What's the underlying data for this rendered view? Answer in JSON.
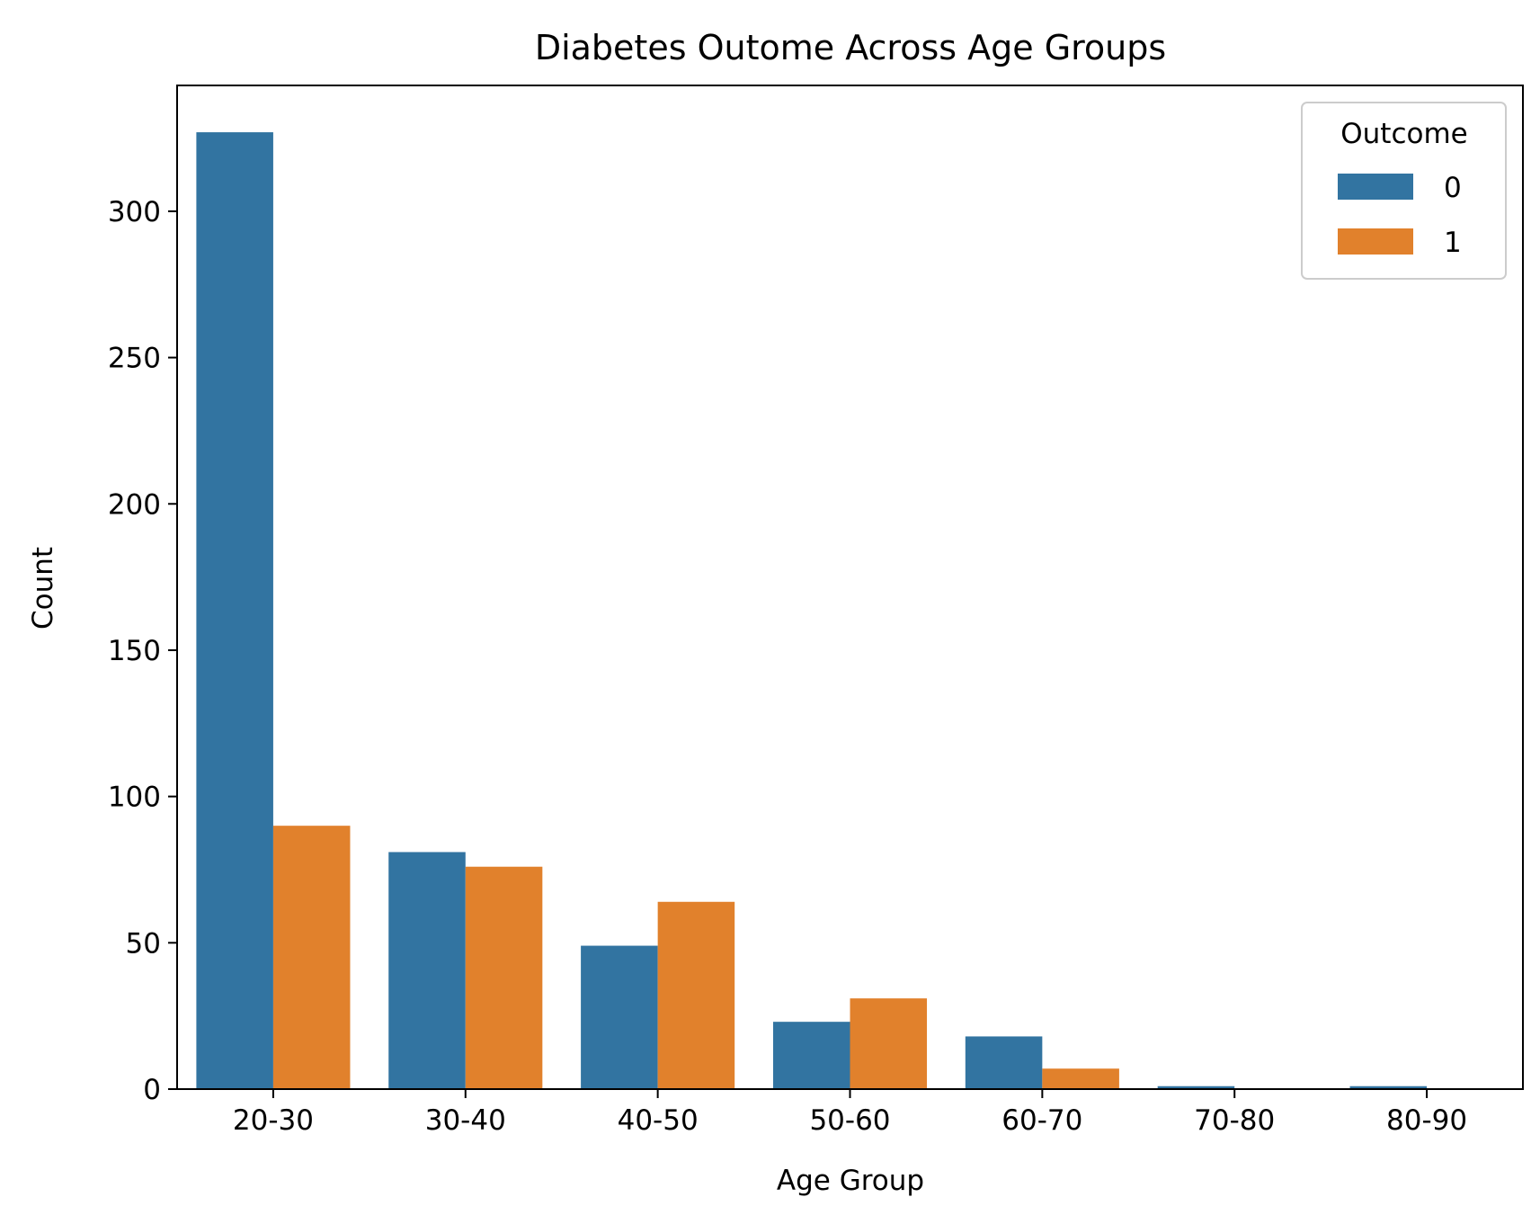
{
  "chart_data": {
    "type": "bar",
    "title": "Diabetes Outome Across Age Groups",
    "xlabel": "Age Group",
    "ylabel": "Count",
    "categories": [
      "20-30",
      "30-40",
      "40-50",
      "50-60",
      "60-70",
      "70-80",
      "80-90"
    ],
    "series": [
      {
        "name": "0",
        "color": "#3274a1",
        "values": [
          327,
          81,
          49,
          23,
          18,
          1,
          1
        ]
      },
      {
        "name": "1",
        "color": "#e1812c",
        "values": [
          90,
          76,
          64,
          31,
          7,
          0,
          0
        ]
      }
    ],
    "ylim": [
      0,
      343
    ],
    "yticks": [
      0,
      50,
      100,
      150,
      200,
      250,
      300
    ],
    "grid": false,
    "legend": {
      "title": "Outcome",
      "placement": "top-right"
    }
  }
}
